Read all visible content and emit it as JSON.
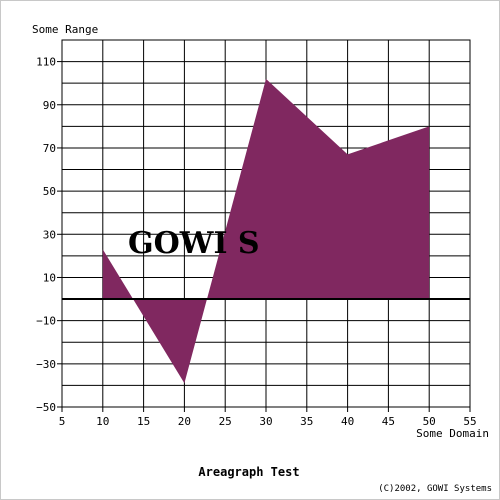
{
  "chart_data": {
    "type": "area",
    "title": "Areagraph Test",
    "xlabel": "Some Domain",
    "ylabel": "Some Range",
    "x": [
      10,
      20,
      30,
      40,
      50
    ],
    "series": [
      {
        "values": [
          23,
          -39,
          102,
          67,
          80
        ],
        "color": "#802860"
      }
    ],
    "xlim": [
      5,
      55
    ],
    "ylim": [
      -50,
      120
    ],
    "xticks": [
      5,
      10,
      15,
      20,
      25,
      30,
      35,
      40,
      45,
      50,
      55
    ],
    "yticks": [
      -50,
      -30,
      -10,
      10,
      30,
      50,
      70,
      90,
      110
    ],
    "grid": true,
    "baseline": 0
  },
  "watermark": "GOWI S",
  "copyright": "(C)2002, GOWI Systems"
}
